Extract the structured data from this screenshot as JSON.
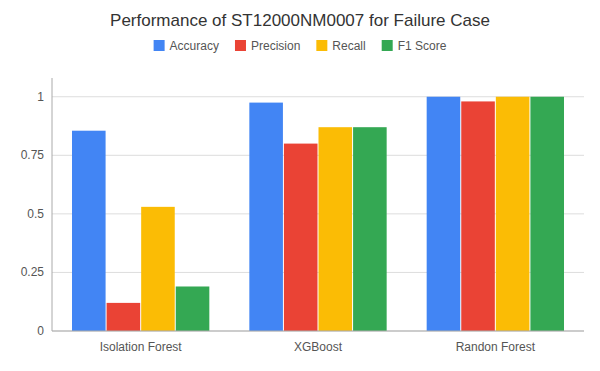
{
  "chart_data": {
    "type": "bar",
    "title": "Performance of ST12000NM0007 for Failure Case",
    "categories": [
      "Isolation Forest",
      "XGBoost",
      "Randon Forest"
    ],
    "series": [
      {
        "name": "Accuracy",
        "color": "#4285F4",
        "values": [
          0.855,
          0.975,
          1.0
        ]
      },
      {
        "name": "Precision",
        "color": "#EA4335",
        "values": [
          0.12,
          0.8,
          0.98
        ]
      },
      {
        "name": "Recall",
        "color": "#FBBC05",
        "values": [
          0.53,
          0.87,
          1.0
        ]
      },
      {
        "name": "F1 Score",
        "color": "#34A853",
        "values": [
          0.19,
          0.87,
          1.0
        ]
      }
    ],
    "ylim": [
      0,
      1.08
    ],
    "yticks": [
      0,
      0.25,
      0.5,
      0.75,
      1
    ],
    "grid": true,
    "legend": "top"
  }
}
